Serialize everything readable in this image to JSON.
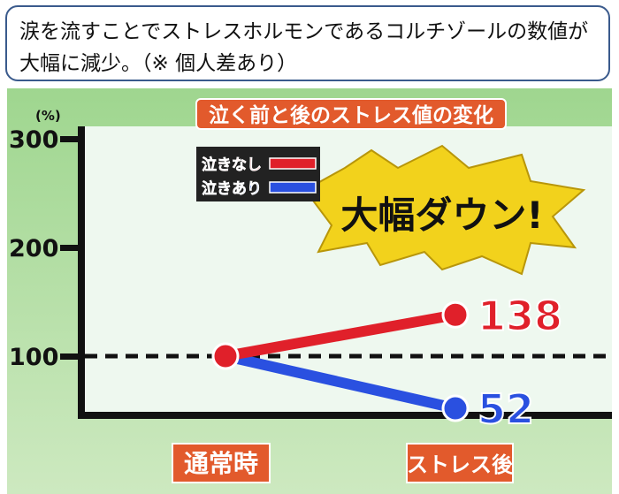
{
  "caption": "涙を流すことでストレスホルモンであるコルチゾールの数値が大幅に減少。（※ 個人差あり）",
  "chart_data": {
    "type": "line",
    "title": "泣く前と後のストレス値の変化",
    "ylabel": "(%)",
    "ylim": [
      0,
      300
    ],
    "yticks": [
      "100",
      "200",
      "300"
    ],
    "categories": [
      "通常時",
      "ストレス後"
    ],
    "reference_line": 100,
    "series": [
      {
        "name": "泣きなし",
        "values": [
          100,
          138
        ],
        "color": "#e0202a"
      },
      {
        "name": "泣きあり",
        "values": [
          100,
          52
        ],
        "color": "#2a50e0"
      }
    ],
    "data_labels": [
      "138",
      "52"
    ],
    "annotation": "大幅ダウン!",
    "legend": "top-left"
  }
}
